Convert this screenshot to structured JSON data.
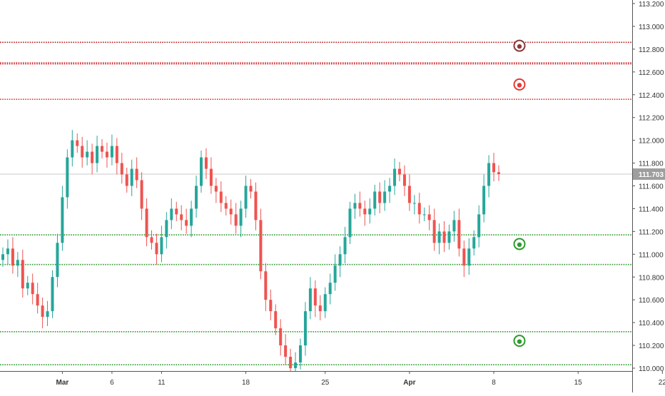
{
  "chart_data": {
    "type": "candlestick",
    "y_axis": {
      "min": 110.0,
      "max": 113.2,
      "ticks": [
        "113.200",
        "113.000",
        "112.800",
        "112.600",
        "112.400",
        "112.200",
        "112.000",
        "111.800",
        "111.600",
        "111.400",
        "111.200",
        "111.000",
        "110.800",
        "110.600",
        "110.400",
        "110.200",
        "110.000"
      ]
    },
    "x_axis": {
      "labels": [
        {
          "text": "Mar",
          "bold": true,
          "index": 12
        },
        {
          "text": "6",
          "bold": false,
          "index": 22
        },
        {
          "text": "11",
          "bold": false,
          "index": 32
        },
        {
          "text": "18",
          "bold": false,
          "index": 49
        },
        {
          "text": "25",
          "bold": false,
          "index": 65
        },
        {
          "text": "Apr",
          "bold": true,
          "index": 82
        },
        {
          "text": "8",
          "bold": false,
          "index": 99
        },
        {
          "text": "15",
          "bold": false,
          "index": 116
        },
        {
          "text": "22",
          "bold": false,
          "index": 133
        }
      ]
    },
    "last_price": {
      "value": 111.703,
      "label": "111.703"
    },
    "levels": [
      {
        "value": 112.86,
        "color": "#b71c1c"
      },
      {
        "value": 112.68,
        "color": "#d32f2f"
      },
      {
        "value": 112.67,
        "color": "#d32f2f"
      },
      {
        "value": 112.36,
        "color": "#e53935"
      },
      {
        "value": 111.17,
        "color": "#2e9b2e"
      },
      {
        "value": 110.91,
        "color": "#2e9b2e"
      },
      {
        "value": 110.32,
        "color": "#2e9b2e"
      },
      {
        "value": 110.03,
        "color": "#2e9b2e"
      }
    ],
    "markers": [
      {
        "value": 112.83,
        "color": "#8b3a3a"
      },
      {
        "value": 112.49,
        "color": "#e53935"
      },
      {
        "value": 111.09,
        "color": "#2e9b2e"
      },
      {
        "value": 110.24,
        "color": "#2e9b2e"
      }
    ],
    "colors": {
      "up": "#26a69a",
      "down": "#ef5350",
      "level_red": "#d32f2f",
      "level_green": "#2e9b2e",
      "last_line": "#c8c8c8",
      "last_label_bg": "#9e9e9e"
    },
    "closes": [
      111.0,
      111.05,
      110.9,
      110.95,
      110.7,
      110.75,
      110.65,
      110.55,
      110.45,
      110.5,
      110.8,
      111.1,
      111.5,
      111.85,
      112.0,
      111.95,
      111.85,
      111.9,
      111.8,
      111.95,
      111.9,
      111.85,
      111.95,
      111.8,
      111.7,
      111.6,
      111.75,
      111.65,
      111.4,
      111.15,
      111.1,
      111.0,
      111.15,
      111.3,
      111.4,
      111.35,
      111.3,
      111.25,
      111.4,
      111.6,
      111.85,
      111.75,
      111.6,
      111.55,
      111.45,
      111.4,
      111.35,
      111.25,
      111.4,
      111.6,
      111.55,
      111.3,
      110.85,
      110.6,
      110.5,
      110.35,
      110.2,
      110.1,
      110.0,
      110.05,
      110.2,
      110.5,
      110.7,
      110.55,
      110.5,
      110.65,
      110.75,
      110.9,
      111.0,
      111.15,
      111.4,
      111.45,
      111.4,
      111.35,
      111.4,
      111.55,
      111.45,
      111.55,
      111.6,
      111.75,
      111.7,
      111.6,
      111.45,
      111.45,
      111.35,
      111.35,
      111.3,
      111.1,
      111.2,
      111.1,
      111.2,
      111.3,
      111.05,
      110.9,
      111.05,
      111.15,
      111.35,
      111.6,
      111.8,
      111.72,
      111.703
    ]
  }
}
